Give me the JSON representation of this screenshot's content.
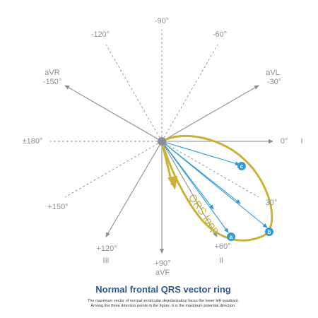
{
  "diagram": {
    "title": "Normal frontal QRS vector ring",
    "caption_line1": "The maximum vector of normal ventricular depolarization faces the lower left quadrant.",
    "caption_line2": "Among the three direction points in the figure, b is the maximum potential direction.",
    "loop_label": "QRS loop",
    "axes": {
      "neg90": "-90°",
      "neg120": "-120°",
      "neg60": "-60°",
      "avr_name": "aVR",
      "neg150": "-150°",
      "avl_name": "aVL",
      "neg30": "-30°",
      "pm180": "±180°",
      "zero": "0°",
      "lead_I": "I",
      "pos30": "30°",
      "pos150": "+150°",
      "pos120": "+120°",
      "lead_III": "III",
      "pos90": "+90°",
      "avf_name": "aVF",
      "pos60": "+60°",
      "lead_II": "II"
    },
    "points": {
      "a": "a",
      "b": "b",
      "c": "c"
    },
    "colors": {
      "axis": "#8c8e94",
      "loop": "#c9b13a",
      "vector": "#2e9bd6",
      "origin": "#8a8d95",
      "title": "#2f5a8a"
    }
  }
}
